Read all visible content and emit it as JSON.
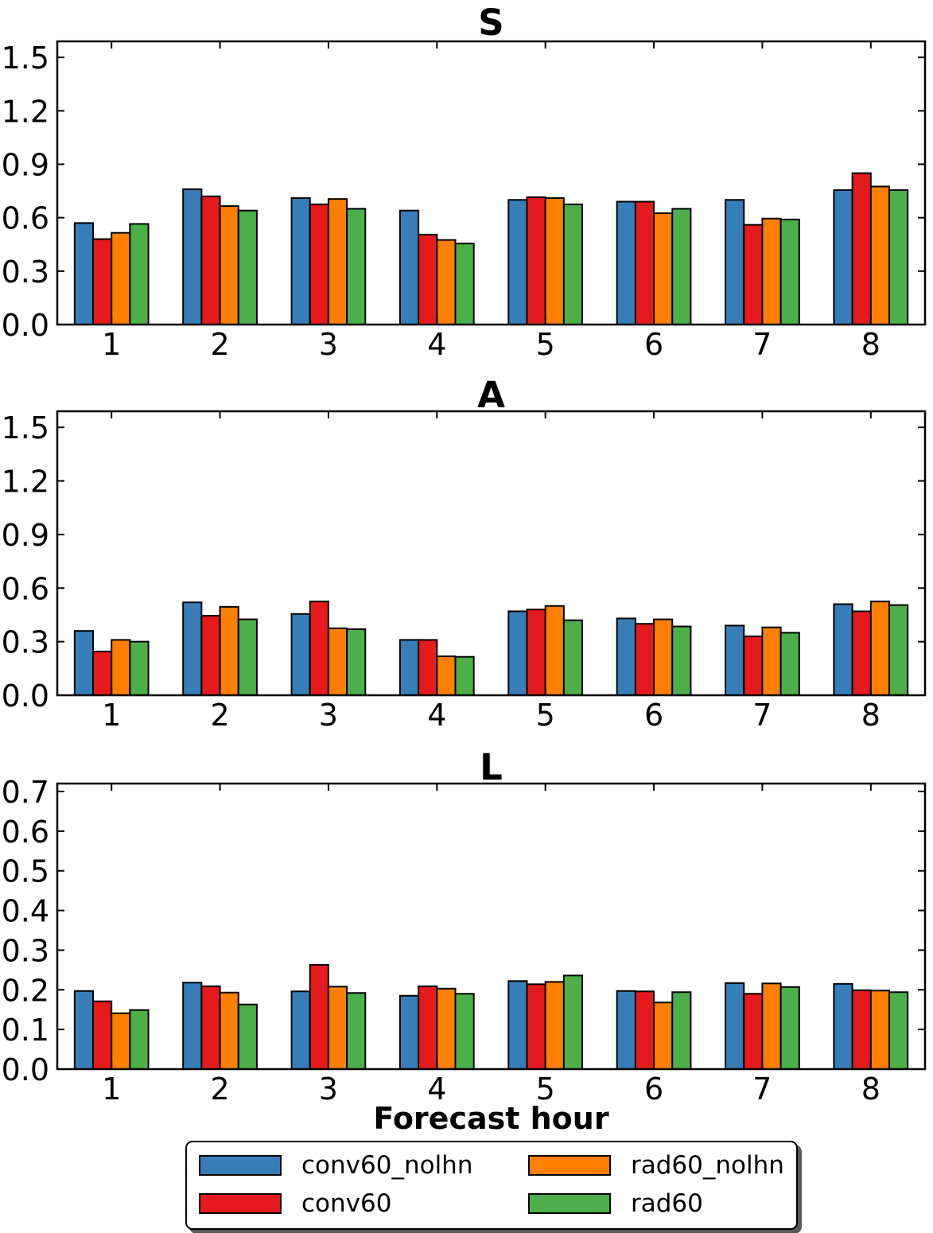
{
  "figure": {
    "xlabel": "Forecast hour",
    "background": "#ffffff",
    "text_color": "#000000"
  },
  "legend": {
    "position": "bottom-center",
    "columns": 2,
    "items": [
      {
        "label": "conv60_nolhn",
        "color": "#377EB8"
      },
      {
        "label": "conv60",
        "color": "#E41A1C"
      },
      {
        "label": "rad60_nolhn",
        "color": "#FF7F00"
      },
      {
        "label": "rad60",
        "color": "#4DAF4A"
      }
    ]
  },
  "chart_data": [
    {
      "type": "bar",
      "title": "S",
      "xlabel": "",
      "ylabel": "",
      "grid": false,
      "categories": [
        "1",
        "2",
        "3",
        "4",
        "5",
        "6",
        "7",
        "8"
      ],
      "yticks": [
        "0.0",
        "0.3",
        "0.6",
        "0.9",
        "1.2",
        "1.5"
      ],
      "ylim": [
        0,
        1.59
      ],
      "series": [
        {
          "name": "conv60_nolhn",
          "color": "#377EB8",
          "values": [
            0.57,
            0.76,
            0.71,
            0.64,
            0.7,
            0.69,
            0.7,
            0.755
          ]
        },
        {
          "name": "conv60",
          "color": "#E41A1C",
          "values": [
            0.48,
            0.72,
            0.675,
            0.505,
            0.715,
            0.69,
            0.56,
            0.85
          ]
        },
        {
          "name": "rad60_nolhn",
          "color": "#FF7F00",
          "values": [
            0.515,
            0.665,
            0.705,
            0.475,
            0.71,
            0.625,
            0.595,
            0.775
          ]
        },
        {
          "name": "rad60",
          "color": "#4DAF4A",
          "values": [
            0.565,
            0.64,
            0.65,
            0.455,
            0.675,
            0.65,
            0.59,
            0.755
          ]
        }
      ]
    },
    {
      "type": "bar",
      "title": "A",
      "xlabel": "",
      "ylabel": "",
      "grid": false,
      "categories": [
        "1",
        "2",
        "3",
        "4",
        "5",
        "6",
        "7",
        "8"
      ],
      "yticks": [
        "0.0",
        "0.3",
        "0.6",
        "0.9",
        "1.2",
        "1.5"
      ],
      "ylim": [
        0,
        1.59
      ],
      "series": [
        {
          "name": "conv60_nolhn",
          "color": "#377EB8",
          "values": [
            0.36,
            0.52,
            0.455,
            0.31,
            0.47,
            0.43,
            0.39,
            0.51
          ]
        },
        {
          "name": "conv60",
          "color": "#E41A1C",
          "values": [
            0.245,
            0.445,
            0.525,
            0.31,
            0.48,
            0.4,
            0.33,
            0.47
          ]
        },
        {
          "name": "rad60_nolhn",
          "color": "#FF7F00",
          "values": [
            0.31,
            0.495,
            0.375,
            0.218,
            0.5,
            0.425,
            0.38,
            0.525
          ]
        },
        {
          "name": "rad60",
          "color": "#4DAF4A",
          "values": [
            0.3,
            0.425,
            0.37,
            0.215,
            0.42,
            0.385,
            0.35,
            0.505
          ]
        }
      ]
    },
    {
      "type": "bar",
      "title": "L",
      "xlabel": "Forecast hour",
      "ylabel": "",
      "grid": false,
      "categories": [
        "1",
        "2",
        "3",
        "4",
        "5",
        "6",
        "7",
        "8"
      ],
      "yticks": [
        "0.0",
        "0.1",
        "0.2",
        "0.3",
        "0.4",
        "0.5",
        "0.6",
        "0.7"
      ],
      "ylim": [
        0,
        0.72
      ],
      "series": [
        {
          "name": "conv60_nolhn",
          "color": "#377EB8",
          "values": [
            0.197,
            0.218,
            0.196,
            0.185,
            0.222,
            0.197,
            0.217,
            0.215
          ]
        },
        {
          "name": "conv60",
          "color": "#E41A1C",
          "values": [
            0.171,
            0.209,
            0.263,
            0.209,
            0.214,
            0.196,
            0.19,
            0.199
          ]
        },
        {
          "name": "rad60_nolhn",
          "color": "#FF7F00",
          "values": [
            0.141,
            0.193,
            0.208,
            0.203,
            0.22,
            0.168,
            0.216,
            0.198
          ]
        },
        {
          "name": "rad60",
          "color": "#4DAF4A",
          "values": [
            0.149,
            0.163,
            0.192,
            0.19,
            0.236,
            0.194,
            0.207,
            0.194
          ]
        }
      ]
    }
  ]
}
